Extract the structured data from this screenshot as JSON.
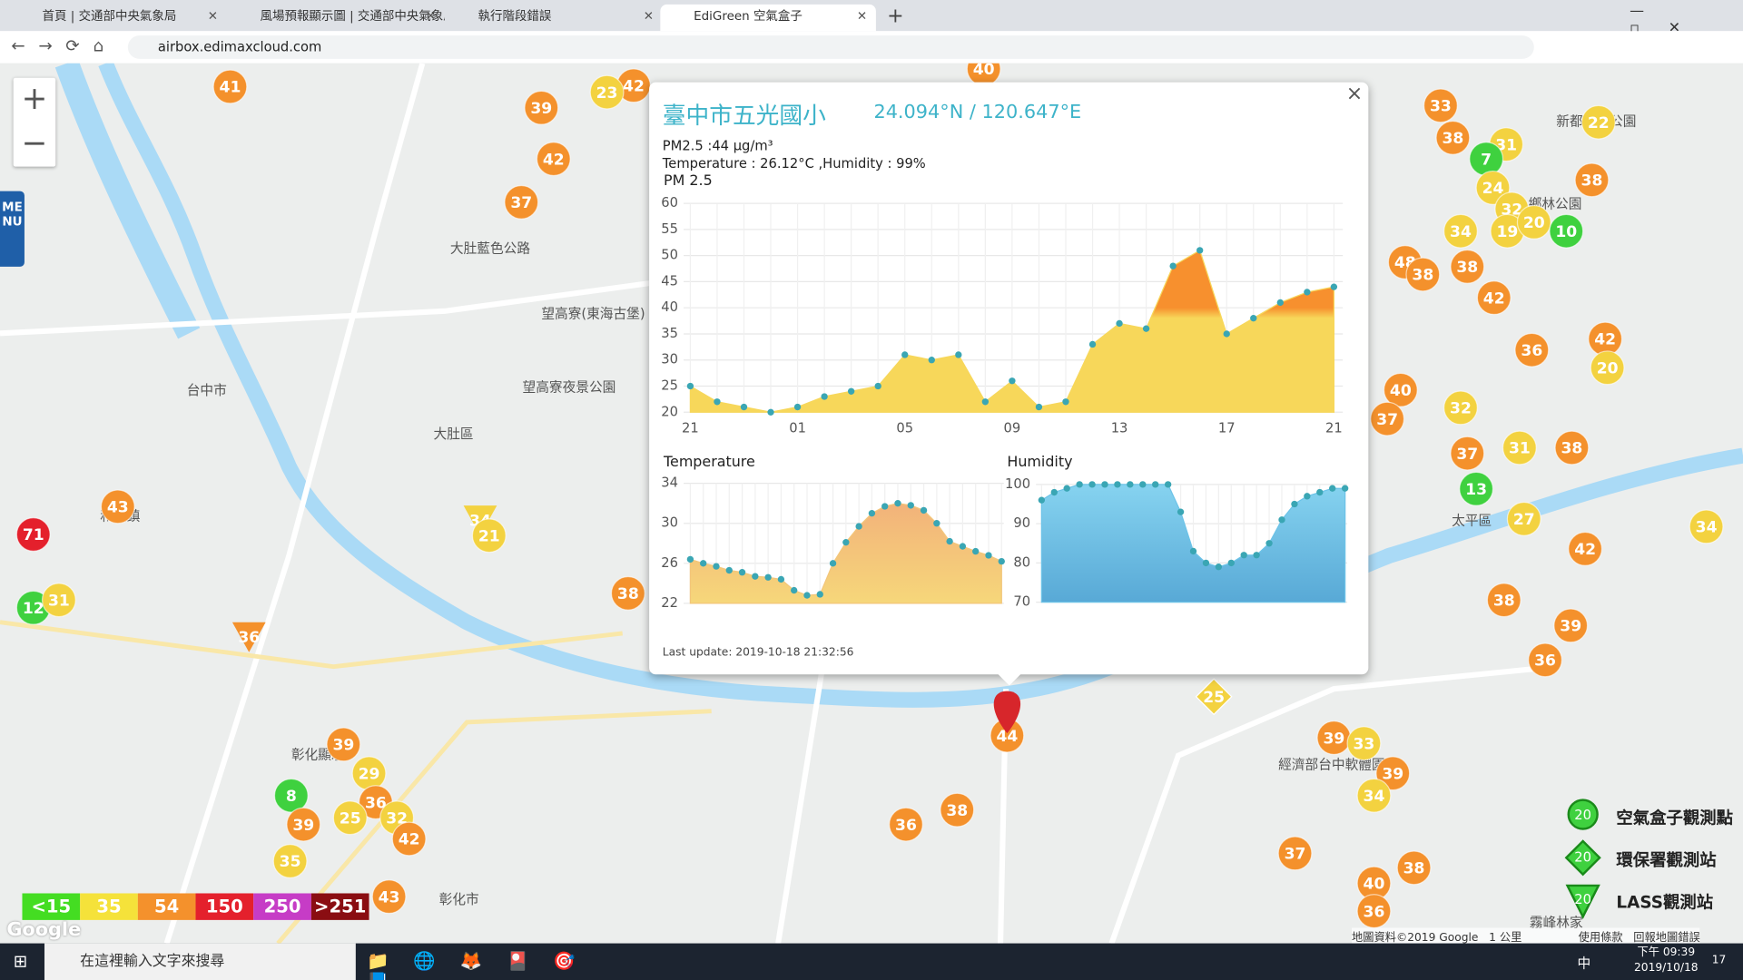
{
  "browser": {
    "tabs": [
      "首頁 | 交通部中央氣象局",
      "風場預報顯示圖 | 交通部中央氣象局",
      "執行階段錯誤",
      "EdiGreen 空氣盒子"
    ],
    "url": "airbox.edimaxcloud.com"
  },
  "map": {
    "menu": "MENU",
    "zoom": [
      "+",
      "−"
    ],
    "places": [
      "大肚藍色公路",
      "望高寮(東海古堡)",
      "望高寮夜景公園",
      "大肚區",
      "和美鎮",
      "彰化市",
      "太平區",
      "霧峰林家",
      "鄉林公園",
      "新都生態公園",
      "彰化顯示",
      "經濟部台中軟體園區",
      "台中市"
    ],
    "palette": {
      "g": "#3fd13f",
      "y": "#f3d240",
      "o": "#f4912c",
      "r": "#e4202c"
    },
    "markers": [
      {
        "v": 41,
        "c": "o"
      },
      {
        "v": 39,
        "c": "o"
      },
      {
        "v": 42,
        "c": "o"
      },
      {
        "v": 37,
        "c": "o"
      },
      {
        "v": 42,
        "c": "o"
      },
      {
        "v": 23,
        "c": "y"
      },
      {
        "v": 40,
        "c": "o"
      },
      {
        "v": 33,
        "c": "o"
      },
      {
        "v": 38,
        "c": "o"
      },
      {
        "v": 31,
        "c": "y"
      },
      {
        "v": 7,
        "c": "g"
      },
      {
        "v": 22,
        "c": "y"
      },
      {
        "v": 24,
        "c": "y"
      },
      {
        "v": 32,
        "c": "y"
      },
      {
        "v": 34,
        "c": "y"
      },
      {
        "v": 38,
        "c": "o"
      },
      {
        "v": 19,
        "c": "y"
      },
      {
        "v": 20,
        "c": "y"
      },
      {
        "v": 10,
        "c": "g"
      },
      {
        "v": 48,
        "c": "o"
      },
      {
        "v": 38,
        "c": "o"
      },
      {
        "v": 38,
        "c": "o"
      },
      {
        "v": 42,
        "c": "o"
      },
      {
        "v": 36,
        "c": "o"
      },
      {
        "v": 42,
        "c": "o"
      },
      {
        "v": 20,
        "c": "y"
      },
      {
        "v": 40,
        "c": "o"
      },
      {
        "v": 37,
        "c": "o"
      },
      {
        "v": 32,
        "c": "y"
      },
      {
        "v": 37,
        "c": "o"
      },
      {
        "v": 31,
        "c": "y"
      },
      {
        "v": 38,
        "c": "o"
      },
      {
        "v": 13,
        "c": "g"
      },
      {
        "v": 27,
        "c": "y"
      },
      {
        "v": 34,
        "c": "y"
      },
      {
        "v": 42,
        "c": "o"
      },
      {
        "v": 38,
        "c": "o"
      },
      {
        "v": 39,
        "c": "o"
      },
      {
        "v": 36,
        "c": "o"
      },
      {
        "v": 25,
        "c": "y",
        "s": "d"
      },
      {
        "v": 39,
        "c": "o"
      },
      {
        "v": 33,
        "c": "y"
      },
      {
        "v": 39,
        "c": "o"
      },
      {
        "v": 34,
        "c": "y"
      },
      {
        "v": 37,
        "c": "o"
      },
      {
        "v": 38,
        "c": "o"
      },
      {
        "v": 40,
        "c": "o"
      },
      {
        "v": 36,
        "c": "o"
      },
      {
        "v": 43,
        "c": "o"
      },
      {
        "v": 71,
        "c": "r"
      },
      {
        "v": 12,
        "c": "g"
      },
      {
        "v": 31,
        "c": "y"
      },
      {
        "v": 34,
        "c": "y",
        "s": "t"
      },
      {
        "v": 21,
        "c": "y"
      },
      {
        "v": 36,
        "c": "o",
        "s": "t"
      },
      {
        "v": 38,
        "c": "o"
      },
      {
        "v": 39,
        "c": "o"
      },
      {
        "v": 29,
        "c": "y"
      },
      {
        "v": 8,
        "c": "g"
      },
      {
        "v": 36,
        "c": "o"
      },
      {
        "v": 25,
        "c": "y"
      },
      {
        "v": 32,
        "c": "y"
      },
      {
        "v": 39,
        "c": "o"
      },
      {
        "v": 42,
        "c": "o"
      },
      {
        "v": 35,
        "c": "y"
      },
      {
        "v": 43,
        "c": "o"
      },
      {
        "v": 36,
        "c": "o"
      },
      {
        "v": 38,
        "c": "o"
      },
      {
        "v": 44,
        "c": "o"
      }
    ],
    "scale_legend": [
      {
        "label": "<15",
        "color": "#44dd22"
      },
      {
        "label": "35",
        "color": "#f5e23a"
      },
      {
        "label": "54",
        "color": "#f4912c"
      },
      {
        "label": "150",
        "color": "#e4202c"
      },
      {
        "label": "250",
        "color": "#c63cc6"
      },
      {
        "label": ">251",
        "color": "#8a0d12"
      }
    ],
    "legend_right": [
      {
        "icon": 20,
        "label": "空氣盒子觀測點"
      },
      {
        "icon": 20,
        "label": "環保署觀測站"
      },
      {
        "icon": 20,
        "label": "LASS觀測站"
      }
    ],
    "footer": [
      "Google",
      "地圖資料©2019 Google",
      "1 公里",
      "使用條款",
      "回報地圖錯誤"
    ]
  },
  "popup": {
    "close": "×",
    "title": "臺中市五光國小",
    "coords": "24.094°N / 120.647°E",
    "lines": [
      "PM2.5 :44 μg/m³",
      "Temperature : 26.12°C ,Humidity : 99%"
    ],
    "updated": "Last update: 2019-10-18 21:32:56"
  },
  "chart_data": [
    {
      "type": "area",
      "title": "PM 2.5",
      "categories": [
        "21",
        null,
        null,
        null,
        "01",
        null,
        null,
        null,
        "05",
        null,
        null,
        null,
        "09",
        null,
        null,
        null,
        "13",
        null,
        null,
        null,
        "17",
        null,
        null,
        null,
        "21"
      ],
      "values": [
        25,
        22,
        21,
        20,
        21,
        23,
        24,
        25,
        31,
        30,
        31,
        22,
        26,
        21,
        22,
        33,
        37,
        36,
        48,
        51,
        35,
        38,
        41,
        43,
        44
      ],
      "ylim": [
        20,
        60
      ],
      "yticks": [
        20,
        25,
        30,
        35,
        40,
        45,
        50,
        55,
        60
      ],
      "color": "#f7d75a",
      "point_color": "#3aa6b4",
      "grid": true
    },
    {
      "type": "area",
      "title": "Temperature",
      "values": [
        26.4,
        26,
        25.7,
        25.3,
        25.1,
        24.7,
        24.6,
        24.4,
        23.3,
        22.8,
        22.9,
        26,
        28.1,
        29.7,
        31,
        31.7,
        32,
        31.8,
        31.3,
        30,
        28.2,
        27.7,
        27.2,
        26.8,
        26.2
      ],
      "ylim": [
        22,
        34
      ],
      "yticks": [
        22,
        26,
        30,
        34
      ],
      "color": "#f3c67a",
      "point_color": "#3aa6b4",
      "grid": true
    },
    {
      "type": "area",
      "title": "Humidity",
      "values": [
        96,
        98,
        99,
        100,
        100,
        100,
        100,
        100,
        100,
        100,
        100,
        93,
        83,
        80,
        79,
        80,
        82,
        82,
        85,
        91,
        95,
        97,
        98,
        99,
        99
      ],
      "ylim": [
        70,
        100
      ],
      "yticks": [
        70,
        80,
        90,
        100
      ],
      "color": "#6cc3e8",
      "point_color": "#3aa6b4",
      "grid": true
    }
  ],
  "taskbar": {
    "search": "在這裡輸入文字來搜尋",
    "time": "下午 09:39",
    "date": "2019/10/18",
    "ime": "中",
    "notify": "17"
  }
}
